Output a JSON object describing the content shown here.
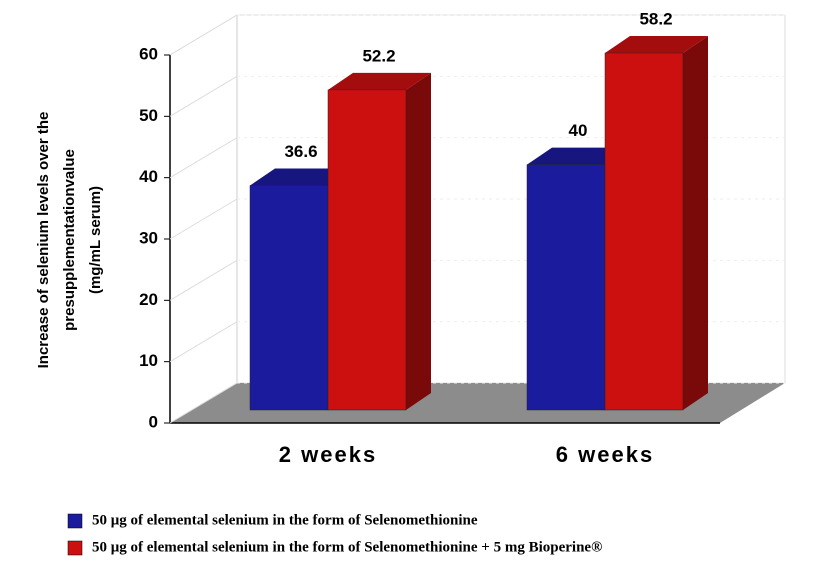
{
  "chart_data": {
    "type": "bar3d",
    "ylabel": [
      "Increase of selenium levels over the",
      "presupplementationvalue",
      "(mg/mL serum)"
    ],
    "categories": [
      "2 weeks",
      "6 weeks"
    ],
    "series": [
      {
        "name": "50 μg of elemental selenium in the form of Selenomethionine",
        "color": "#1b1b9e",
        "values": [
          36.6,
          40
        ]
      },
      {
        "name": "50 μg of elemental selenium in the form of Selenomethionine + 5 mg Bioperine®",
        "color": "#cc1010",
        "values": [
          52.2,
          58.2
        ]
      }
    ],
    "ylim": [
      0,
      60
    ],
    "yticks": [
      0,
      10,
      20,
      30,
      40,
      50,
      60
    ],
    "grid": true
  }
}
